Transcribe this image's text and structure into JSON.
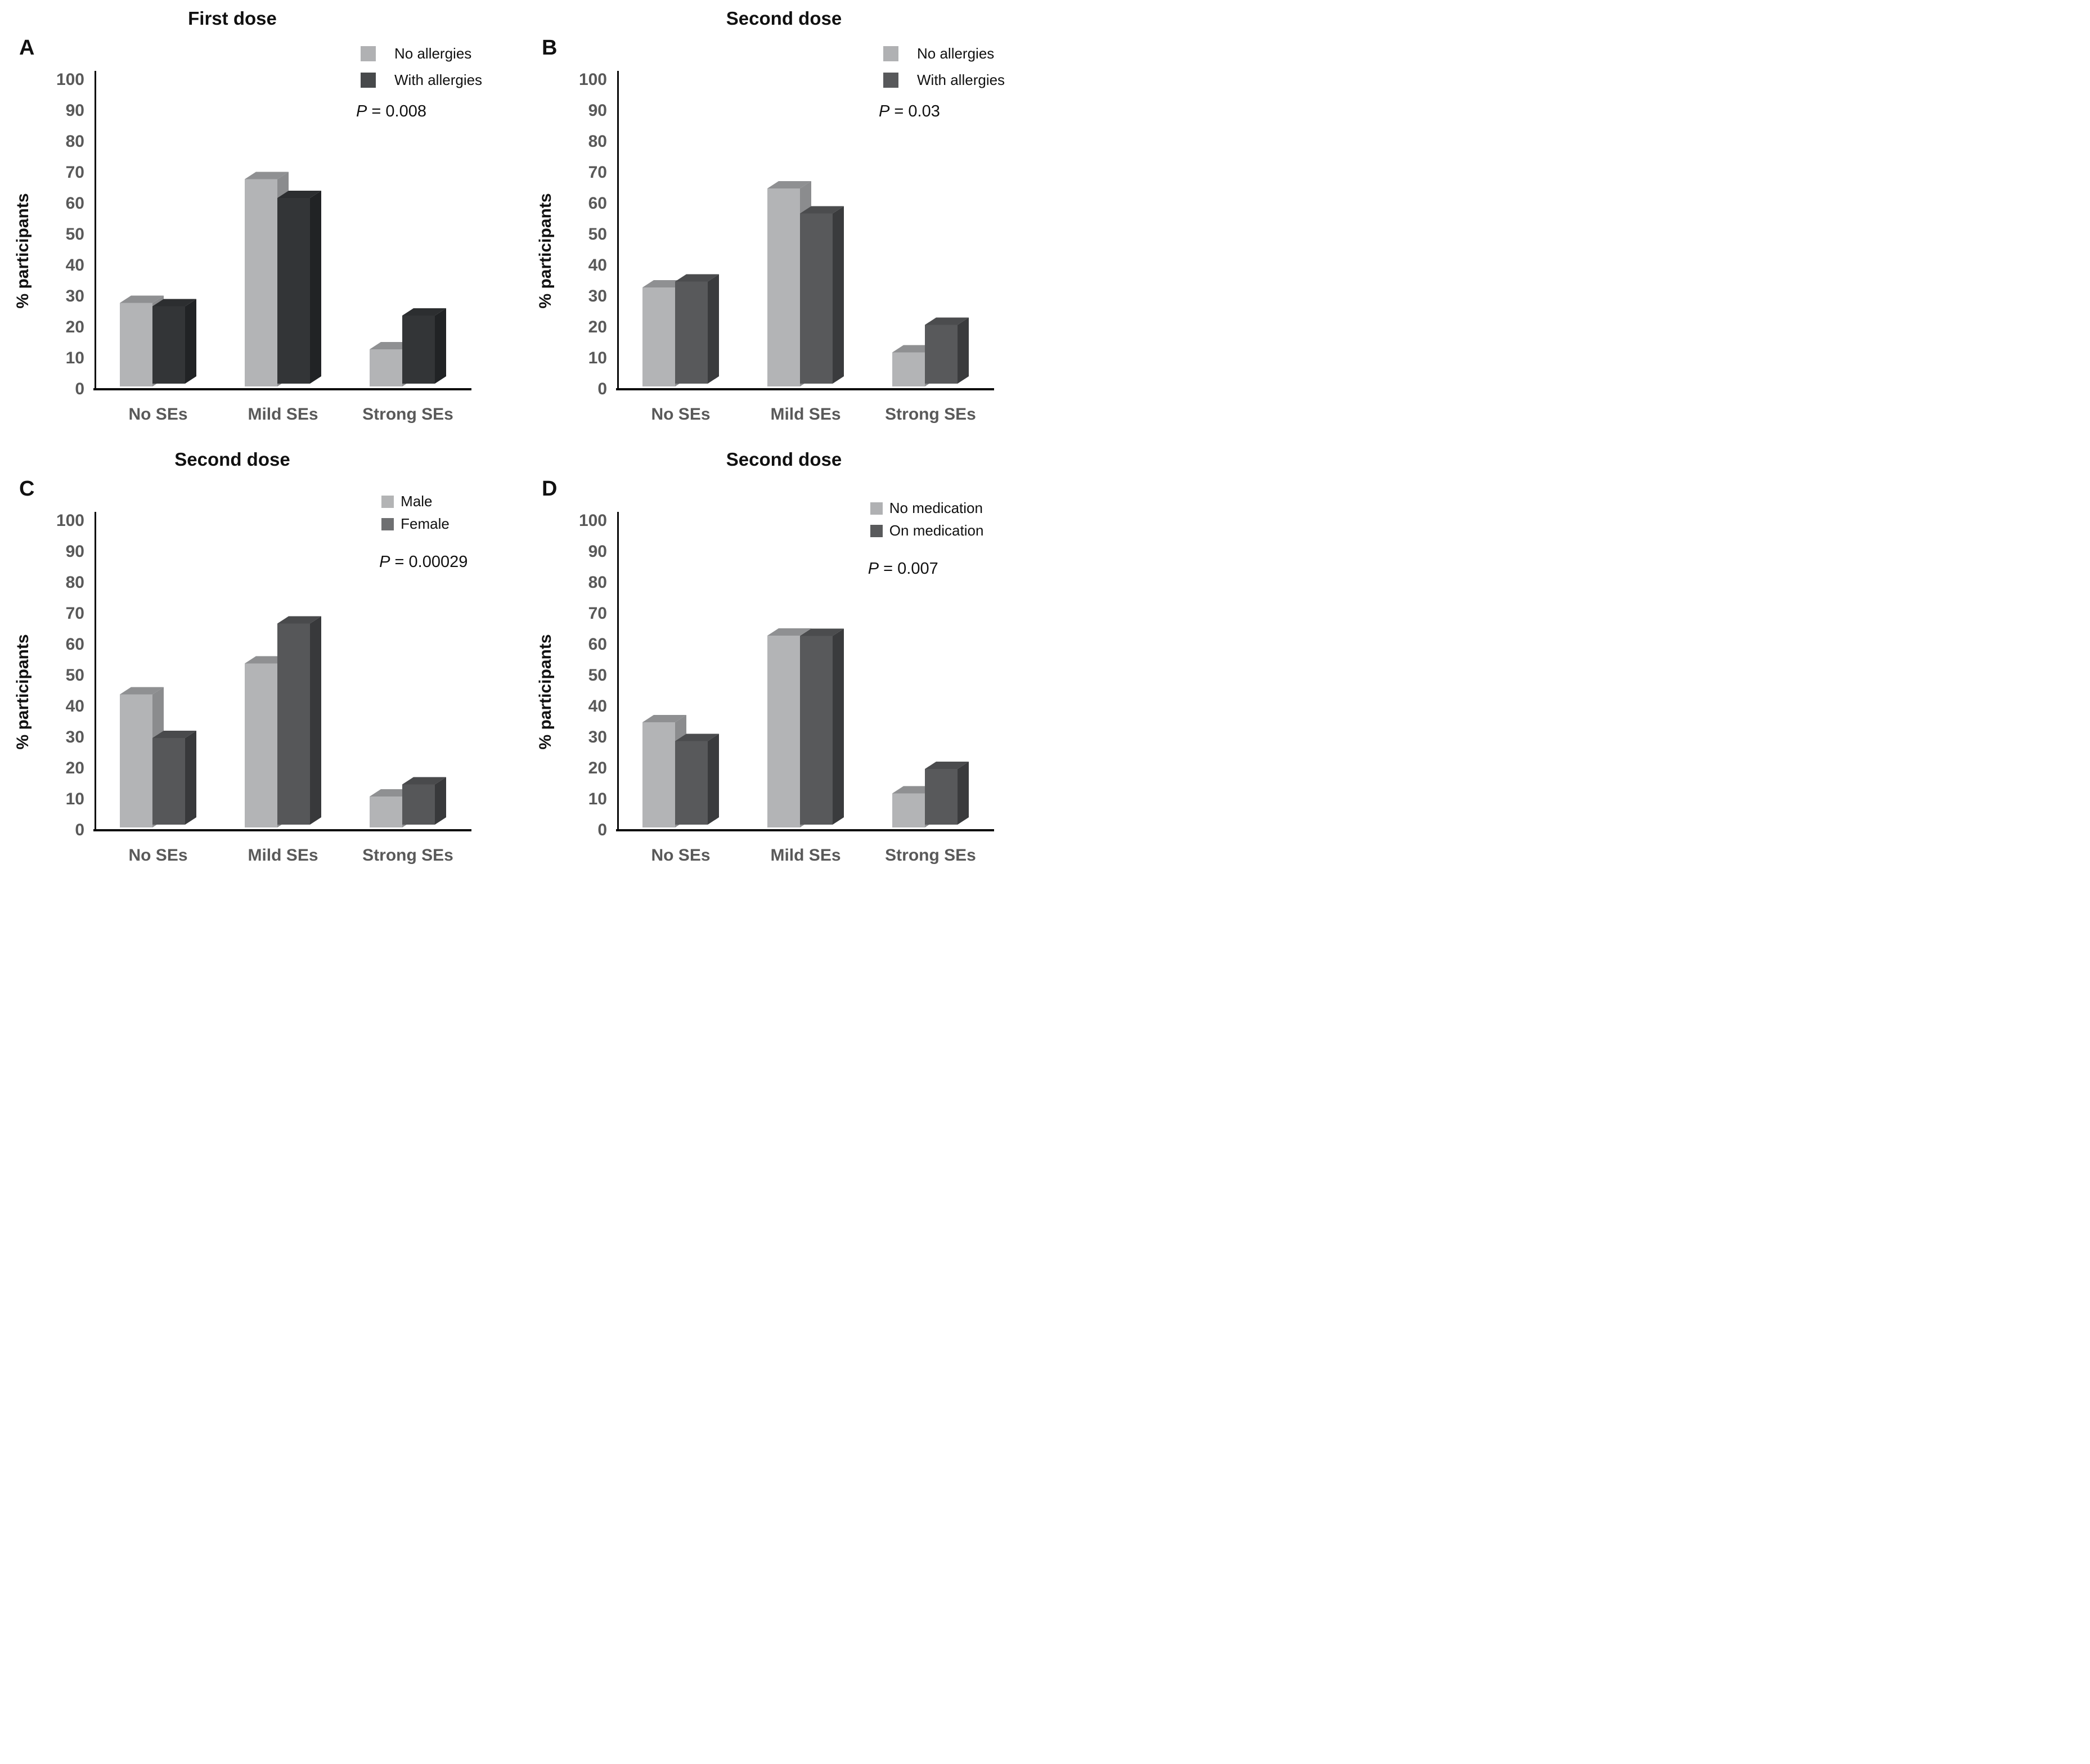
{
  "chart_data": [
    {
      "type": "bar",
      "panel": "A",
      "title": "First dose",
      "categories": [
        "No SEs",
        "Mild SEs",
        "Strong SEs"
      ],
      "series": [
        {
          "name": "No allergies",
          "values": [
            27,
            67,
            12
          ],
          "front": "#b3b4b6",
          "top": "#8f9092",
          "side": "#8b8c8e",
          "legend_color": "#b0b1b3"
        },
        {
          "name": "With allergies",
          "values": [
            25,
            60,
            22
          ],
          "front": "#333537",
          "top": "#2c2e30",
          "side": "#212325",
          "legend_color": "#47494b"
        }
      ],
      "p_value": "P = 0.008",
      "ylabel": "% participants",
      "ylim": [
        0,
        100
      ],
      "yticks": [
        0,
        10,
        20,
        30,
        40,
        50,
        60,
        70,
        80,
        90,
        100
      ],
      "legend_position": "top-right",
      "grid": false
    },
    {
      "type": "bar",
      "panel": "B",
      "title": "Second dose",
      "categories": [
        "No SEs",
        "Mild SEs",
        "Strong SEs"
      ],
      "series": [
        {
          "name": "No allergies",
          "values": [
            32,
            64,
            11
          ],
          "front": "#b3b4b6",
          "top": "#8f9092",
          "side": "#8b8c8e",
          "legend_color": "#b0b1b3"
        },
        {
          "name": "With allergies",
          "values": [
            33,
            55,
            19
          ],
          "front": "#58595b",
          "top": "#4b4c4e",
          "side": "#3a3b3d",
          "legend_color": "#58595b"
        }
      ],
      "p_value": "P = 0.03",
      "ylabel": "% participants",
      "ylim": [
        0,
        100
      ],
      "yticks": [
        0,
        10,
        20,
        30,
        40,
        50,
        60,
        70,
        80,
        90,
        100
      ],
      "legend_position": "top-right",
      "grid": false
    },
    {
      "type": "bar",
      "panel": "C",
      "title": "Second dose",
      "categories": [
        "No SEs",
        "Mild SEs",
        "Strong SEs"
      ],
      "series": [
        {
          "name": "Male",
          "values": [
            43,
            53,
            10
          ],
          "front": "#b3b4b6",
          "top": "#8f9092",
          "side": "#8b8c8e",
          "legend_color": "#b3b4b5"
        },
        {
          "name": "Female",
          "values": [
            28,
            65,
            13
          ],
          "front": "#565759",
          "top": "#494a4c",
          "side": "#38393b",
          "legend_color": "#6e6f71"
        }
      ],
      "p_value": "P = 0.00029",
      "ylabel": "% participants",
      "ylim": [
        0,
        100
      ],
      "yticks": [
        0,
        10,
        20,
        30,
        40,
        50,
        60,
        70,
        80,
        90,
        100
      ],
      "legend_position": "top-right",
      "grid": false
    },
    {
      "type": "bar",
      "panel": "D",
      "title": "Second dose",
      "categories": [
        "No SEs",
        "Mild SEs",
        "Strong SEs"
      ],
      "series": [
        {
          "name": "No medication",
          "values": [
            34,
            62,
            11
          ],
          "front": "#b3b4b6",
          "top": "#8f9092",
          "side": "#8b8c8e",
          "legend_color": "#b0b1b3"
        },
        {
          "name": "On medication",
          "values": [
            27,
            61,
            18
          ],
          "front": "#58595b",
          "top": "#4b4c4e",
          "side": "#3a3b3d",
          "legend_color": "#595a5c"
        }
      ],
      "p_value": "P = 0.007",
      "ylabel": "% participants",
      "ylim": [
        0,
        100
      ],
      "yticks": [
        0,
        10,
        20,
        30,
        40,
        50,
        60,
        70,
        80,
        90,
        100
      ],
      "legend_position": "top-right",
      "grid": false
    }
  ]
}
